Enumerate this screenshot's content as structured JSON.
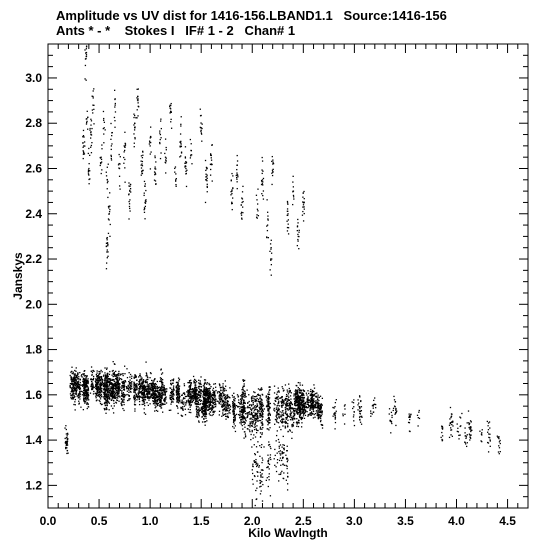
{
  "chart_data": {
    "type": "scatter",
    "title": "Amplitude vs UV dist for 1416-156.LBAND1.1   Source:1416-156",
    "subtitle": "Ants * - *    Stokes I   IF# 1 - 2   Chan# 1",
    "xlabel": "Kilo Wavlngth",
    "ylabel": "Janskys",
    "xlim": [
      0.0,
      4.7
    ],
    "ylim": [
      1.1,
      3.15
    ],
    "xticks": [
      "0.0",
      "0.5",
      "1.0",
      "1.5",
      "2.0",
      "2.5",
      "3.0",
      "3.5",
      "4.0",
      "4.5"
    ],
    "yticks": [
      "1.2",
      "1.4",
      "1.6",
      "1.8",
      "2.0",
      "2.2",
      "2.4",
      "2.6",
      "2.8",
      "3.0"
    ],
    "grid": false,
    "point_color": "#000000",
    "upper_group_points": [
      [
        0.35,
        2.7
      ],
      [
        0.38,
        2.82
      ],
      [
        0.4,
        2.6
      ],
      [
        0.42,
        2.75
      ],
      [
        0.44,
        2.88
      ],
      [
        0.52,
        2.65
      ],
      [
        0.55,
        2.78
      ],
      [
        0.58,
        2.55
      ],
      [
        0.6,
        2.4
      ],
      [
        0.62,
        2.7
      ],
      [
        0.66,
        2.85
      ],
      [
        0.7,
        2.6
      ],
      [
        0.75,
        2.68
      ],
      [
        0.8,
        2.5
      ],
      [
        0.85,
        2.78
      ],
      [
        0.88,
        2.9
      ],
      [
        0.92,
        2.62
      ],
      [
        0.95,
        2.45
      ],
      [
        1.0,
        2.7
      ],
      [
        1.05,
        2.58
      ],
      [
        1.1,
        2.75
      ],
      [
        1.15,
        2.65
      ],
      [
        1.2,
        2.85
      ],
      [
        1.25,
        2.55
      ],
      [
        1.3,
        2.72
      ],
      [
        1.35,
        2.6
      ],
      [
        1.4,
        2.68
      ],
      [
        1.5,
        2.78
      ],
      [
        1.55,
        2.55
      ],
      [
        1.6,
        2.62
      ],
      [
        1.8,
        2.5
      ],
      [
        1.85,
        2.58
      ],
      [
        1.9,
        2.45
      ],
      [
        2.05,
        2.42
      ],
      [
        2.1,
        2.55
      ],
      [
        2.15,
        2.35
      ],
      [
        2.2,
        2.62
      ],
      [
        2.35,
        2.4
      ],
      [
        2.4,
        2.5
      ],
      [
        2.45,
        2.3
      ],
      [
        2.5,
        2.45
      ],
      [
        0.37,
        3.11
      ],
      [
        0.58,
        2.24
      ],
      [
        2.18,
        2.2
      ]
    ],
    "lower_group_trend": [
      [
        0.2,
        1.64
      ],
      [
        0.5,
        1.63
      ],
      [
        1.0,
        1.62
      ],
      [
        1.5,
        1.58
      ],
      [
        2.0,
        1.53
      ],
      [
        2.5,
        1.55
      ],
      [
        3.0,
        1.52
      ],
      [
        3.5,
        1.5
      ],
      [
        4.0,
        1.44
      ],
      [
        4.5,
        1.42
      ],
      [
        4.6,
        1.38
      ]
    ]
  }
}
